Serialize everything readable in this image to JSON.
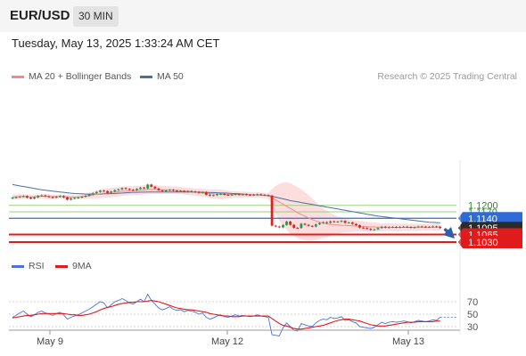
{
  "header": {
    "pair": "EUR/USD",
    "timeframe": "30 MIN"
  },
  "timestamp": "Tuesday, May 13, 2025 1:33:24 AM CET",
  "legend": {
    "ma20_label": "MA 20 + Bollinger Bands",
    "ma50_label": "MA 50",
    "credit": "Research © 2025 Trading Central"
  },
  "rsi_legend": {
    "rsi_label": "RSI",
    "ma_label": "9MA"
  },
  "colors": {
    "up": "#1e9e4a",
    "down": "#d62424",
    "ma20": "#f08a8a",
    "ma50": "#4a6fa5",
    "band": "#fcd3d3",
    "resistance": "#9ccf7a",
    "pivot": "#2f6bd6",
    "support": "#e01b1b",
    "price_tag": "#2b2b2b",
    "rsi": "#4a72d8",
    "rsi_ma": "#e01b1b"
  },
  "chart_data": [
    {
      "type": "candlestick",
      "title": "EUR/USD",
      "x_labels": [
        "May 9",
        "May 12",
        "May 13"
      ],
      "price_levels": [
        {
          "value": "1.1200",
          "kind": "resistance"
        },
        {
          "value": "1.1170",
          "kind": "resistance"
        },
        {
          "value": "1.1140",
          "kind": "pivot"
        },
        {
          "value": "1.1095",
          "kind": "last"
        },
        {
          "value": "1.1065",
          "kind": "support"
        },
        {
          "value": "1.1030",
          "kind": "support"
        }
      ],
      "close_sequence": [
        1.1235,
        1.1238,
        1.1241,
        1.1243,
        1.1236,
        1.1231,
        1.1237,
        1.1244,
        1.1246,
        1.1242,
        1.1238,
        1.1236,
        1.124,
        1.1243,
        1.1237,
        1.1226,
        1.1232,
        1.1234,
        1.1236,
        1.124,
        1.1244,
        1.125,
        1.1256,
        1.1262,
        1.1268,
        1.1266,
        1.1258,
        1.1264,
        1.127,
        1.1274,
        1.128,
        1.1276,
        1.1272,
        1.127,
        1.1276,
        1.1282,
        1.1278,
        1.1296,
        1.1286,
        1.1278,
        1.127,
        1.1266,
        1.1269,
        1.1272,
        1.1268,
        1.1266,
        1.1267,
        1.1263,
        1.1266,
        1.1264,
        1.1262,
        1.1258,
        1.1261,
        1.1249,
        1.1245,
        1.1247,
        1.1251,
        1.1253,
        1.1249,
        1.1247,
        1.125,
        1.1252,
        1.1249,
        1.1251,
        1.1249,
        1.1247,
        1.1249,
        1.1251,
        1.1249,
        1.1247,
        1.1245,
        1.1106,
        1.1102,
        1.1098,
        1.1109,
        1.1125,
        1.111,
        1.1096,
        1.1095,
        1.1115,
        1.111,
        1.1105,
        1.1102,
        1.1112,
        1.1118,
        1.1122,
        1.1119,
        1.1126,
        1.1123,
        1.1125,
        1.1128,
        1.1119,
        1.1121,
        1.1114,
        1.1108,
        1.1097,
        1.1095,
        1.1091,
        1.1086,
        1.1089,
        1.1095,
        1.1101,
        1.1097,
        1.1099,
        1.11,
        1.1098,
        1.11,
        1.1101,
        1.11,
        1.1097,
        1.1099,
        1.1102,
        1.1101,
        1.1099,
        1.11,
        1.1102,
        1.1101,
        1.1095
      ],
      "ma20": [
        1.1238,
        1.1239,
        1.124,
        1.1241,
        1.124,
        1.1239,
        1.124,
        1.1241,
        1.1242,
        1.1242,
        1.1241,
        1.124,
        1.124,
        1.1241,
        1.124,
        1.1239,
        1.1238,
        1.1238,
        1.1239,
        1.124,
        1.1242,
        1.1245,
        1.1248,
        1.1251,
        1.1254,
        1.1256,
        1.1257,
        1.1259,
        1.1261,
        1.1263,
        1.1265,
        1.1266,
        1.1267,
        1.1268,
        1.1269,
        1.127,
        1.1271,
        1.1273,
        1.1274,
        1.1273,
        1.1272,
        1.1271,
        1.1271,
        1.1271,
        1.127,
        1.1269,
        1.1268,
        1.1266,
        1.1265,
        1.1263,
        1.1261,
        1.1259,
        1.1258,
        1.1256,
        1.1254,
        1.1253,
        1.1252,
        1.1252,
        1.1251,
        1.125,
        1.125,
        1.125,
        1.125,
        1.1249,
        1.1249,
        1.1249,
        1.1248,
        1.1248,
        1.1247,
        1.1246,
        1.1245,
        1.1235,
        1.1225,
        1.1215,
        1.1205,
        1.1196,
        1.1186,
        1.1176,
        1.1166,
        1.1158,
        1.115,
        1.1142,
        1.1134,
        1.1128,
        1.1122,
        1.1118,
        1.1114,
        1.1112,
        1.111,
        1.1109,
        1.1108,
        1.1107,
        1.1106,
        1.1105,
        1.1104,
        1.1103,
        1.1102,
        1.1101,
        1.11,
        1.11,
        1.1099,
        1.1099,
        1.1099,
        1.1099,
        1.1098,
        1.1098,
        1.1098,
        1.1098,
        1.1098,
        1.1098,
        1.1098,
        1.1099,
        1.1099,
        1.1099,
        1.1099,
        1.1099,
        1.1099,
        1.1099
      ],
      "bb_half_width": [
        0.0012,
        0.0012,
        0.0011,
        0.001,
        0.001,
        0.001,
        0.001,
        0.001,
        0.001,
        0.001,
        0.001,
        0.001,
        0.001,
        0.0009,
        0.0009,
        0.0009,
        0.0009,
        0.0009,
        0.0009,
        0.001,
        0.0012,
        0.0014,
        0.0016,
        0.0018,
        0.002,
        0.0021,
        0.0022,
        0.0022,
        0.0022,
        0.0022,
        0.0022,
        0.0021,
        0.0021,
        0.0021,
        0.0021,
        0.0021,
        0.0021,
        0.0022,
        0.0022,
        0.0021,
        0.002,
        0.0019,
        0.0018,
        0.0018,
        0.0017,
        0.0017,
        0.0017,
        0.0017,
        0.0017,
        0.0017,
        0.0017,
        0.0017,
        0.0018,
        0.0019,
        0.002,
        0.0021,
        0.0021,
        0.0021,
        0.002,
        0.0018,
        0.0016,
        0.0015,
        0.0014,
        0.0014,
        0.0014,
        0.0013,
        0.0013,
        0.0013,
        0.0012,
        0.0012,
        0.0012,
        0.004,
        0.0065,
        0.0085,
        0.01,
        0.011,
        0.0116,
        0.0118,
        0.0118,
        0.0116,
        0.0112,
        0.0106,
        0.0098,
        0.0088,
        0.0078,
        0.0068,
        0.006,
        0.0052,
        0.0046,
        0.004,
        0.0036,
        0.0032,
        0.003,
        0.0028,
        0.0026,
        0.0025,
        0.0024,
        0.0023,
        0.0022,
        0.0021,
        0.002,
        0.0019,
        0.0018,
        0.0018,
        0.0018,
        0.0018,
        0.0018,
        0.0017,
        0.0017,
        0.0017,
        0.0017,
        0.0017,
        0.0016,
        0.0016,
        0.0016,
        0.0016,
        0.0016,
        0.0016,
        0.0016
      ],
      "ma50": [
        1.1296,
        1.1293,
        1.129,
        1.1287,
        1.1284,
        1.1281,
        1.1278,
        1.1275,
        1.1272,
        1.127,
        1.1268,
        1.1266,
        1.1264,
        1.1262,
        1.126,
        1.1258,
        1.1256,
        1.1255,
        1.1254,
        1.1253,
        1.1252,
        1.1252,
        1.1252,
        1.1252,
        1.1252,
        1.1253,
        1.1253,
        1.1254,
        1.1255,
        1.1256,
        1.1257,
        1.1258,
        1.1259,
        1.126,
        1.126,
        1.1261,
        1.1261,
        1.1262,
        1.1262,
        1.1262,
        1.1262,
        1.1262,
        1.1262,
        1.1262,
        1.1262,
        1.1262,
        1.1262,
        1.1262,
        1.1262,
        1.1262,
        1.1261,
        1.1261,
        1.126,
        1.126,
        1.1259,
        1.1259,
        1.1258,
        1.1257,
        1.1257,
        1.1256,
        1.1255,
        1.1254,
        1.1253,
        1.1252,
        1.1251,
        1.125,
        1.1249,
        1.1248,
        1.1247,
        1.1246,
        1.1245,
        1.1242,
        1.1238,
        1.1234,
        1.123,
        1.1226,
        1.1222,
        1.1219,
        1.1216,
        1.1213,
        1.121,
        1.1207,
        1.1204,
        1.1201,
        1.1198,
        1.1195,
        1.1192,
        1.1189,
        1.1186,
        1.1183,
        1.118,
        1.1177,
        1.1174,
        1.1171,
        1.1168,
        1.1165,
        1.1162,
        1.1159,
        1.1156,
        1.1153,
        1.115,
        1.1148,
        1.1146,
        1.1144,
        1.1142,
        1.114,
        1.1138,
        1.1136,
        1.1134,
        1.1132,
        1.113,
        1.1128,
        1.1126,
        1.1124,
        1.1122,
        1.1121,
        1.112,
        1.1119
      ],
      "forecast": {
        "direction": "down",
        "target": "1.1030"
      }
    },
    {
      "type": "line",
      "title": "RSI",
      "y_ticks": [
        "70",
        "50",
        "30"
      ],
      "ylim": [
        10,
        90
      ],
      "series": [
        {
          "name": "RSI",
          "values": [
            45,
            48,
            52,
            55,
            50,
            46,
            49,
            53,
            55,
            52,
            50,
            48,
            51,
            53,
            49,
            42,
            45,
            47,
            49,
            52,
            55,
            58,
            62,
            66,
            70,
            68,
            60,
            65,
            70,
            72,
            75,
            72,
            68,
            66,
            70,
            74,
            70,
            82,
            72,
            66,
            60,
            57,
            59,
            62,
            58,
            56,
            57,
            54,
            56,
            55,
            53,
            50,
            52,
            45,
            42,
            44,
            47,
            49,
            46,
            45,
            47,
            49,
            47,
            48,
            47,
            46,
            47,
            49,
            47,
            46,
            45,
            17,
            16,
            15,
            28,
            36,
            30,
            24,
            23,
            35,
            33,
            31,
            30,
            36,
            40,
            42,
            41,
            45,
            43,
            44,
            46,
            40,
            41,
            38,
            36,
            30,
            29,
            28,
            27,
            29,
            33,
            37,
            35,
            37,
            38,
            37,
            38,
            39,
            38,
            36,
            38,
            40,
            39,
            38,
            39,
            41,
            40,
            45
          ]
        },
        {
          "name": "9MA",
          "values": [
            44,
            45,
            46,
            47,
            48,
            48,
            49,
            50,
            51,
            51,
            51,
            51,
            51,
            51,
            51,
            50,
            49,
            49,
            48,
            48,
            49,
            50,
            52,
            54,
            57,
            59,
            61,
            62,
            64,
            66,
            67,
            68,
            69,
            69,
            70,
            70,
            70,
            71,
            72,
            71,
            70,
            68,
            66,
            64,
            62,
            60,
            59,
            58,
            57,
            57,
            56,
            55,
            54,
            53,
            51,
            50,
            49,
            48,
            47,
            47,
            46,
            46,
            46,
            47,
            47,
            47,
            47,
            47,
            47,
            47,
            47,
            43,
            39,
            35,
            32,
            31,
            29,
            27,
            26,
            26,
            27,
            28,
            29,
            30,
            31,
            32,
            34,
            36,
            38,
            40,
            41,
            42,
            42,
            41,
            40,
            39,
            37,
            35,
            33,
            32,
            31,
            31,
            31,
            32,
            33,
            34,
            35,
            36,
            37,
            37,
            37,
            38,
            38,
            38,
            38,
            38,
            39,
            39
          ]
        }
      ]
    }
  ]
}
